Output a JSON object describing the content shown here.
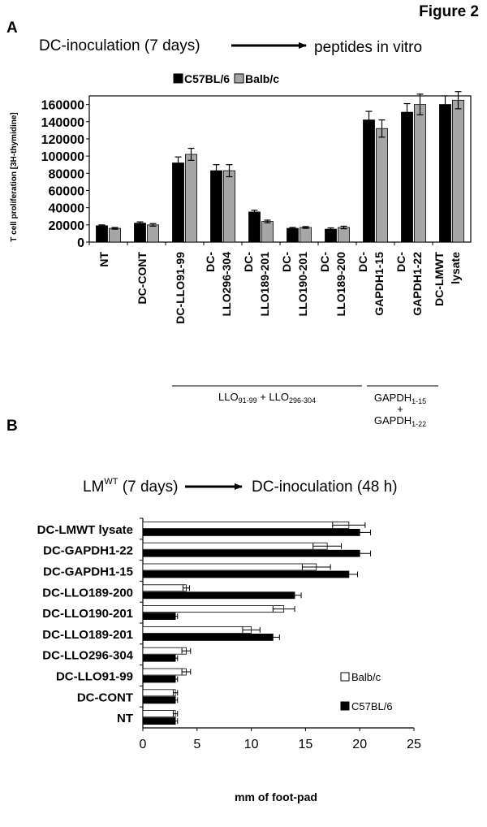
{
  "figure_title": "Figure 2",
  "panel_a": {
    "label": "A",
    "protocol_left": "DC-inoculation (7 days)",
    "protocol_right": "peptides in vitro"
  },
  "panel_b": {
    "label": "B",
    "protocol_left_main": "LM",
    "protocol_left_sup": "WT",
    "protocol_left_rest": " (7 days)",
    "protocol_right": "DC-inoculation (48 h)"
  },
  "group_labels": {
    "llo_main": "LLO",
    "llo_sub1": "91-99",
    "llo_plus": " + LLO",
    "llo_sub2": "296-304",
    "gapdh_main1": "GAPDH",
    "gapdh_sub1": "1-15",
    "gapdh_plus": "+",
    "gapdh_main2": "GAPDH",
    "gapdh_sub2": "1-22"
  },
  "colors": {
    "c57": "#000000",
    "balb_a": "#a6a6a6",
    "balb_b": "#ffffff",
    "axis": "#000000"
  },
  "chart_data": [
    {
      "type": "bar",
      "orientation": "vertical",
      "ylabel": "T cell proliferation [3H-thymidine]",
      "ylim": [
        0,
        170000
      ],
      "yticks": [
        0,
        20000,
        40000,
        60000,
        80000,
        100000,
        120000,
        140000,
        160000
      ],
      "legend_position": "top",
      "categories": [
        [
          "NT"
        ],
        [
          "DC-CONT"
        ],
        [
          "DC-LLO91-99"
        ],
        [
          "DC-",
          "LLO296-304"
        ],
        [
          "DC-",
          "LLO189-201"
        ],
        [
          "DC-",
          "LLO190-201"
        ],
        [
          "DC-",
          "LLO189-200"
        ],
        [
          "DC-",
          "GAPDH1-15"
        ],
        [
          "DC-",
          "GAPDH1-22"
        ],
        [
          "DC-LMWT",
          "lysate"
        ]
      ],
      "series": [
        {
          "name": "C57BL/6",
          "values": [
            19000,
            22000,
            92000,
            83000,
            35000,
            16000,
            15000,
            142000,
            151000,
            160000
          ],
          "errors": [
            1000,
            1500,
            7000,
            7000,
            2000,
            1000,
            1500,
            10000,
            10000,
            10000
          ]
        },
        {
          "name": "Balb/c",
          "values": [
            16000,
            20000,
            102000,
            83000,
            24000,
            17000,
            17000,
            132000,
            160000,
            165000
          ],
          "errors": [
            1000,
            1500,
            7000,
            7000,
            1500,
            1000,
            1500,
            10000,
            12000,
            10000
          ]
        }
      ]
    },
    {
      "type": "bar",
      "orientation": "horizontal",
      "xlabel": "mm of foot-pad",
      "xlim": [
        0,
        25
      ],
      "xticks": [
        0,
        5,
        10,
        15,
        20,
        25
      ],
      "legend_position": "right",
      "categories": [
        "DC-LMWT lysate",
        "DC-GAPDH1-22",
        "DC-GAPDH1-15",
        "DC-LLO189-200",
        "DC-LLO190-201",
        "DC-LLO189-201",
        "DC-LLO296-304",
        "DC-LLO91-99",
        "DC-CONT",
        "NT"
      ],
      "series": [
        {
          "name": "Balb/c",
          "values": [
            19,
            17,
            16,
            4,
            13,
            10,
            4,
            4,
            3,
            3
          ],
          "errors": [
            1.5,
            1.3,
            1.3,
            0.3,
            1.0,
            0.8,
            0.4,
            0.4,
            0.2,
            0.2
          ]
        },
        {
          "name": "C57BL/6",
          "values": [
            20,
            20,
            19,
            14,
            3,
            12,
            3,
            3,
            3,
            3
          ],
          "errors": [
            1.0,
            1.0,
            0.8,
            0.6,
            0.2,
            0.6,
            0.2,
            0.2,
            0.2,
            0.2
          ]
        }
      ]
    }
  ]
}
